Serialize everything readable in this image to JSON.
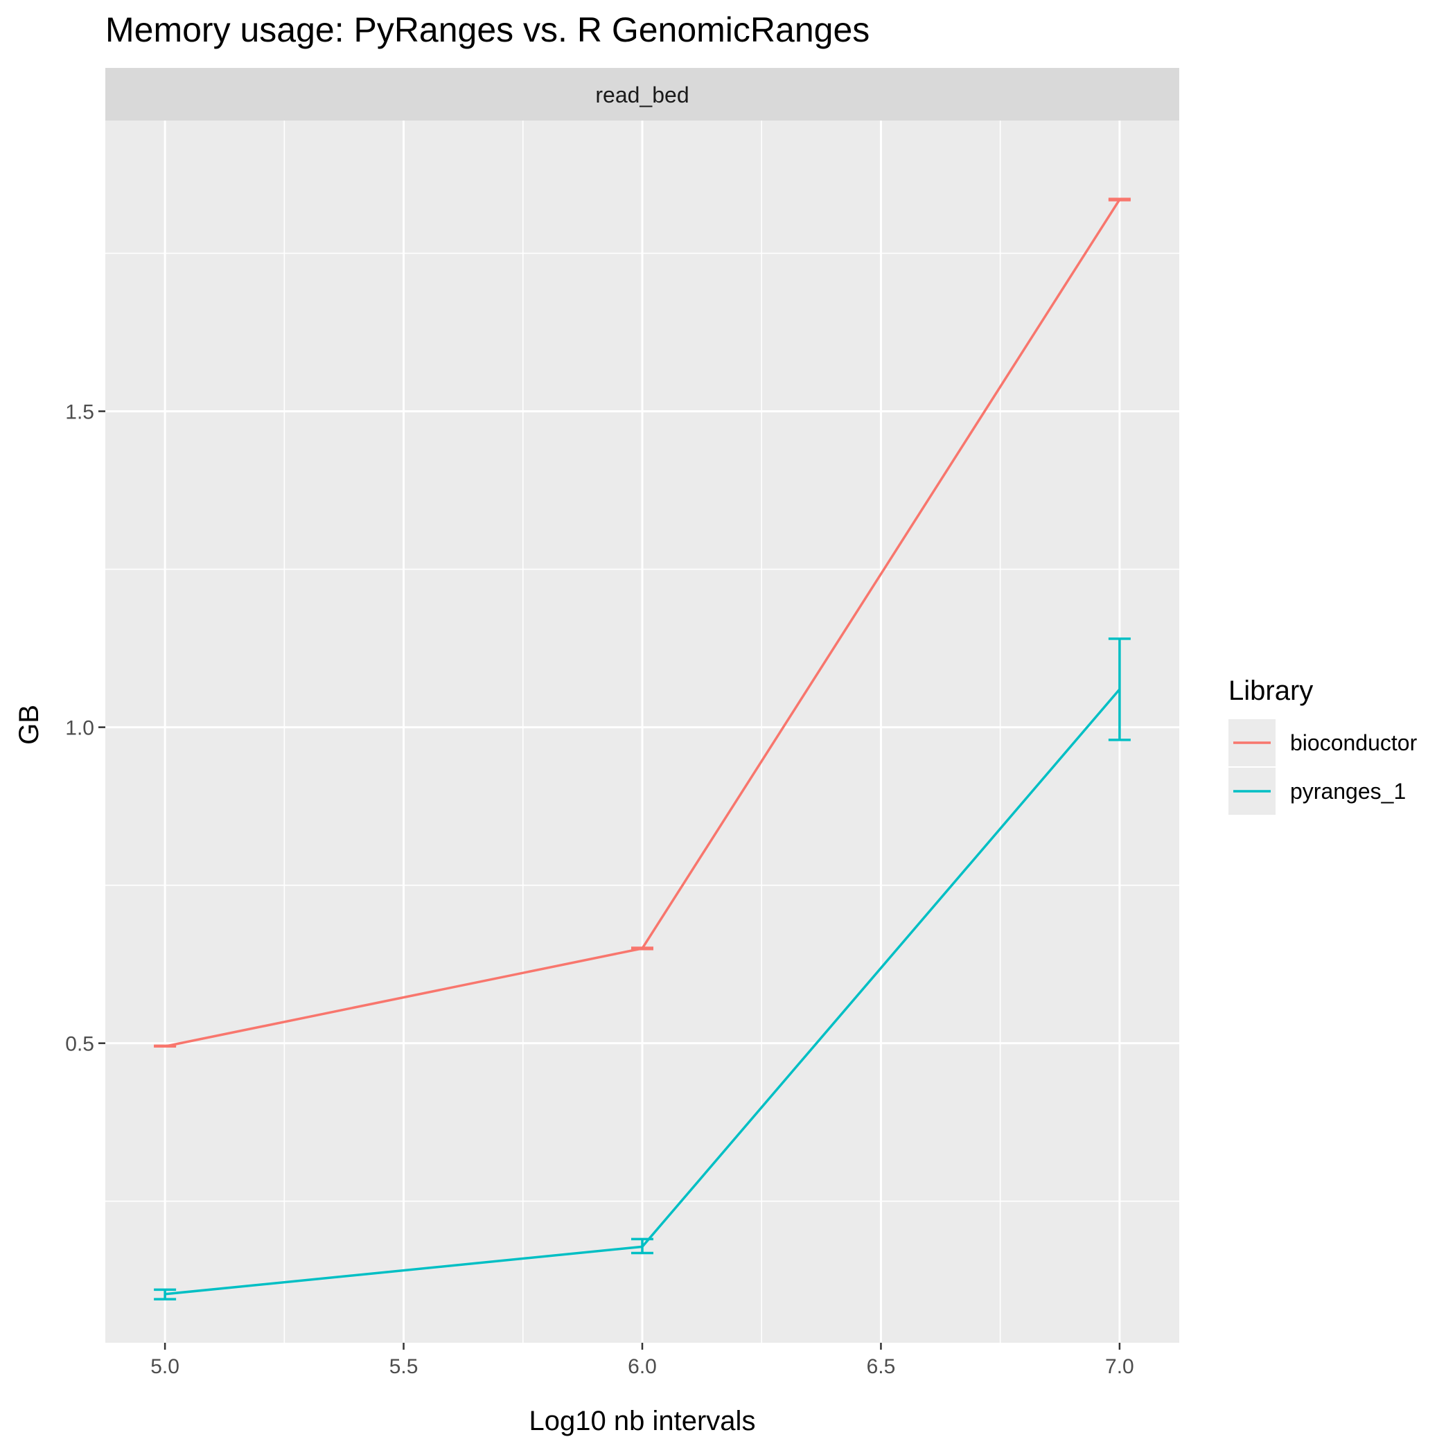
{
  "chart_data": {
    "type": "line",
    "title": "Memory usage: PyRanges vs. R GenomicRanges",
    "facet_label": "read_bed",
    "xlabel": "Log10 nb intervals",
    "ylabel": "GB",
    "x_ticks": [
      5.0,
      5.5,
      6.0,
      6.5,
      7.0
    ],
    "x_tick_labels": [
      "5.0",
      "5.5",
      "6.0",
      "6.5",
      "7.0"
    ],
    "y_ticks": [
      0.5,
      1.0,
      1.5
    ],
    "y_tick_labels": [
      "0.5",
      "1.0",
      "1.5"
    ],
    "xlim": [
      4.875,
      7.125
    ],
    "ylim": [
      0.026,
      1.96
    ],
    "grid": true,
    "legend_title": "Library",
    "legend_position": "right",
    "series": [
      {
        "name": "bioconductor",
        "color": "#F8766D",
        "x": [
          5,
          6,
          7
        ],
        "y": [
          0.495,
          0.65,
          1.835
        ],
        "err_low": [
          0.495,
          0.649,
          1.834
        ],
        "err_high": [
          0.496,
          0.651,
          1.836
        ]
      },
      {
        "name": "pyranges_1",
        "color": "#00BFC4",
        "x": [
          5,
          6,
          7
        ],
        "y": [
          0.103,
          0.178,
          1.06
        ],
        "err_low": [
          0.095,
          0.168,
          0.98
        ],
        "err_high": [
          0.11,
          0.19,
          1.14
        ]
      }
    ]
  }
}
